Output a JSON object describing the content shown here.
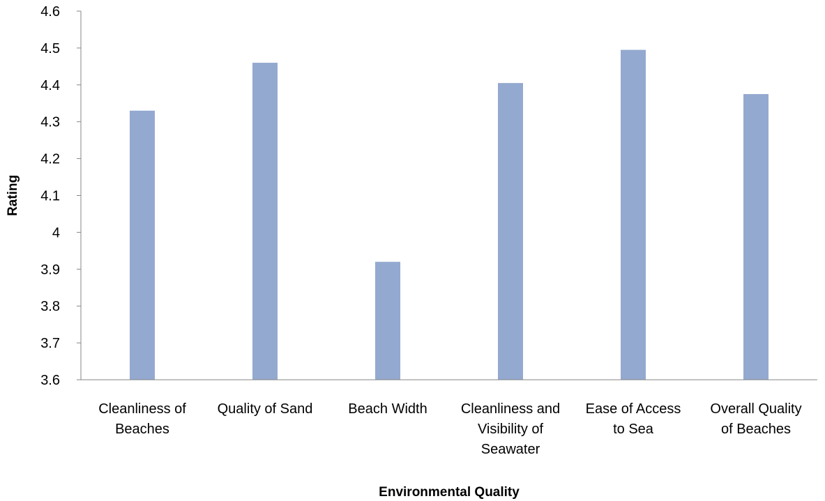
{
  "chart_data": {
    "type": "bar",
    "title": "",
    "xlabel": "Environmental Quality",
    "ylabel": "Rating",
    "categories": [
      [
        "Cleanliness of",
        "Beaches"
      ],
      [
        "Quality of Sand"
      ],
      [
        "Beach Width"
      ],
      [
        "Cleanliness and",
        "Visibility of",
        "Seawater"
      ],
      [
        "Ease of Access",
        "to Sea"
      ],
      [
        "Overall Quality",
        "of Beaches"
      ]
    ],
    "values": [
      4.33,
      4.46,
      3.92,
      4.405,
      4.495,
      4.375
    ],
    "ylim": [
      3.6,
      4.6
    ],
    "yticks": [
      "3.6",
      "3.7",
      "3.8",
      "3.9",
      "4",
      "4.1",
      "4.2",
      "4.3",
      "4.4",
      "4.5",
      "4.6"
    ],
    "grid": false,
    "legend": "none",
    "colors": {
      "bar": "#94a9cf",
      "axis": "#868686",
      "text": "#000000"
    }
  }
}
